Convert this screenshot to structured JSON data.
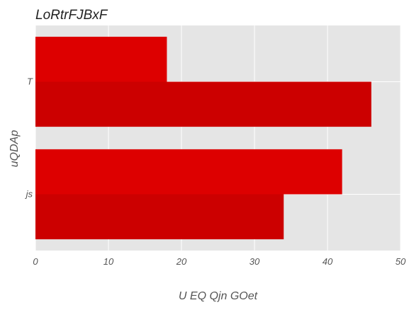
{
  "chart_data": {
    "type": "bar",
    "orientation": "horizontal",
    "title": "LoRtrFJBxF",
    "xlabel": "U EQ Qjn GOet",
    "ylabel": "uQDAp",
    "categories": [
      "T",
      "js"
    ],
    "series": [
      {
        "values": [
          18,
          42
        ],
        "color": "#dd0000"
      },
      {
        "values": [
          46,
          34
        ],
        "color": "#cc0000"
      }
    ],
    "xlim": [
      0,
      50
    ],
    "xticks": [
      0,
      10,
      20,
      30,
      40,
      50
    ],
    "xtick_labels": [
      "0",
      "10",
      "20",
      "30",
      "40",
      "50"
    ],
    "grid": true,
    "legend": "none",
    "colors": {
      "background": "#e5e5e5",
      "grid": "#ffffff",
      "text": "#555555"
    }
  }
}
